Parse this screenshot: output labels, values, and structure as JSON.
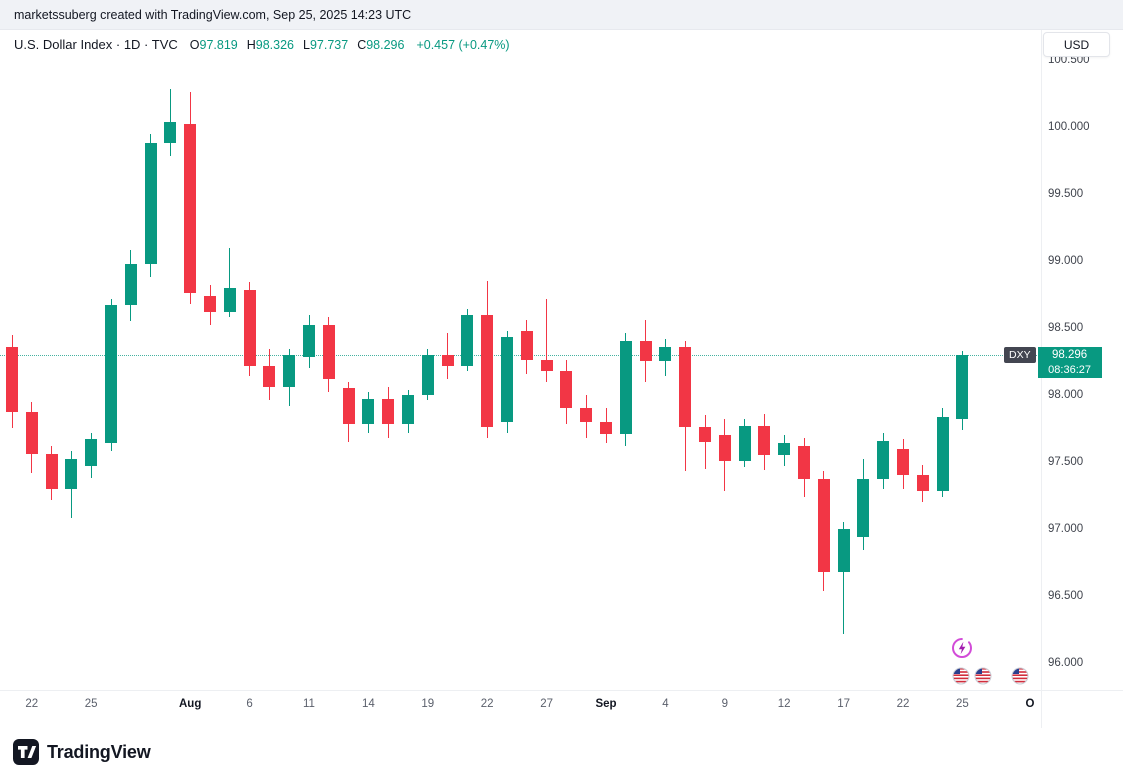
{
  "meta": {
    "attribution": "marketssuberg created with TradingView.com, Sep 25, 2025 14:23 UTC"
  },
  "header": {
    "symbol_title": "U.S. Dollar Index · 1D · TVC",
    "open_label": "O",
    "open_value": "97.819",
    "high_label": "H",
    "high_value": "98.326",
    "low_label": "L",
    "low_value": "97.737",
    "close_label": "C",
    "close_value": "98.296",
    "change_text": "+0.457 (+0.47%)",
    "currency_button": "USD"
  },
  "last_price": {
    "symbol": "DXY",
    "price": "98.296",
    "countdown": "08:36:27"
  },
  "footer": {
    "brand": "TradingView"
  },
  "icons": {
    "flash": "flash-event-icon",
    "us_flag": "us-flag-event-icon",
    "tv_logo": "tradingview-logo-icon"
  },
  "colors": {
    "up": "#089981",
    "down": "#f23645",
    "badge_chip": "#434651",
    "topbar_bg": "#f0f2f6"
  },
  "chart_data": {
    "type": "candlestick",
    "symbol": "DXY",
    "title": "U.S. Dollar Index, 1D, TVC",
    "ylabel": "USD",
    "ylim": [
      96.0,
      100.5
    ],
    "y_ticks": [
      100.5,
      100.0,
      99.5,
      99.0,
      98.5,
      98.0,
      97.5,
      97.0,
      96.5,
      96.0
    ],
    "grid": false,
    "last_price": 98.296,
    "up_color": "#089981",
    "down_color": "#f23645",
    "candles": [
      {
        "t": "Jul 21",
        "o": 98.36,
        "h": 98.45,
        "l": 97.75,
        "c": 97.87
      },
      {
        "t": "Jul 22",
        "o": 97.87,
        "h": 97.95,
        "l": 97.42,
        "c": 97.56
      },
      {
        "t": "Jul 23",
        "o": 97.56,
        "h": 97.62,
        "l": 97.22,
        "c": 97.3
      },
      {
        "t": "Jul 24",
        "o": 97.3,
        "h": 97.58,
        "l": 97.08,
        "c": 97.52
      },
      {
        "t": "Jul 25",
        "o": 97.47,
        "h": 97.72,
        "l": 97.38,
        "c": 97.67
      },
      {
        "t": "Jul 28",
        "o": 97.64,
        "h": 98.72,
        "l": 97.58,
        "c": 98.67
      },
      {
        "t": "Jul 29",
        "o": 98.67,
        "h": 99.08,
        "l": 98.55,
        "c": 98.98
      },
      {
        "t": "Jul 30",
        "o": 98.98,
        "h": 99.95,
        "l": 98.88,
        "c": 99.88
      },
      {
        "t": "Jul 31",
        "o": 99.88,
        "h": 100.28,
        "l": 99.78,
        "c": 100.04
      },
      {
        "t": "Aug 1",
        "o": 100.02,
        "h": 100.26,
        "l": 98.68,
        "c": 98.76
      },
      {
        "t": "Aug 4",
        "o": 98.74,
        "h": 98.82,
        "l": 98.52,
        "c": 98.62
      },
      {
        "t": "Aug 5",
        "o": 98.62,
        "h": 99.1,
        "l": 98.58,
        "c": 98.8
      },
      {
        "t": "Aug 6",
        "o": 98.78,
        "h": 98.84,
        "l": 98.14,
        "c": 98.22
      },
      {
        "t": "Aug 7",
        "o": 98.22,
        "h": 98.34,
        "l": 97.96,
        "c": 98.06
      },
      {
        "t": "Aug 8",
        "o": 98.06,
        "h": 98.34,
        "l": 97.92,
        "c": 98.3
      },
      {
        "t": "Aug 11",
        "o": 98.28,
        "h": 98.6,
        "l": 98.2,
        "c": 98.52
      },
      {
        "t": "Aug 12",
        "o": 98.52,
        "h": 98.58,
        "l": 98.02,
        "c": 98.12
      },
      {
        "t": "Aug 13",
        "o": 98.05,
        "h": 98.1,
        "l": 97.65,
        "c": 97.78
      },
      {
        "t": "Aug 14",
        "o": 97.78,
        "h": 98.02,
        "l": 97.72,
        "c": 97.97
      },
      {
        "t": "Aug 15",
        "o": 97.97,
        "h": 98.06,
        "l": 97.68,
        "c": 97.78
      },
      {
        "t": "Aug 18",
        "o": 97.78,
        "h": 98.04,
        "l": 97.72,
        "c": 98.0
      },
      {
        "t": "Aug 19",
        "o": 98.0,
        "h": 98.34,
        "l": 97.96,
        "c": 98.3
      },
      {
        "t": "Aug 20",
        "o": 98.3,
        "h": 98.46,
        "l": 98.12,
        "c": 98.22
      },
      {
        "t": "Aug 21",
        "o": 98.22,
        "h": 98.64,
        "l": 98.18,
        "c": 98.6
      },
      {
        "t": "Aug 22",
        "o": 98.6,
        "h": 98.85,
        "l": 97.68,
        "c": 97.76
      },
      {
        "t": "Aug 25",
        "o": 97.8,
        "h": 98.48,
        "l": 97.72,
        "c": 98.43
      },
      {
        "t": "Aug 26",
        "o": 98.48,
        "h": 98.56,
        "l": 98.16,
        "c": 98.26
      },
      {
        "t": "Aug 27",
        "o": 98.26,
        "h": 98.72,
        "l": 98.1,
        "c": 98.18
      },
      {
        "t": "Aug 28",
        "o": 98.18,
        "h": 98.26,
        "l": 97.78,
        "c": 97.9
      },
      {
        "t": "Aug 29",
        "o": 97.9,
        "h": 98.0,
        "l": 97.68,
        "c": 97.8
      },
      {
        "t": "Sep 1",
        "o": 97.8,
        "h": 97.9,
        "l": 97.64,
        "c": 97.71
      },
      {
        "t": "Sep 2",
        "o": 97.71,
        "h": 98.46,
        "l": 97.62,
        "c": 98.4
      },
      {
        "t": "Sep 3",
        "o": 98.4,
        "h": 98.56,
        "l": 98.1,
        "c": 98.25
      },
      {
        "t": "Sep 4",
        "o": 98.25,
        "h": 98.42,
        "l": 98.14,
        "c": 98.36
      },
      {
        "t": "Sep 5",
        "o": 98.36,
        "h": 98.4,
        "l": 97.43,
        "c": 97.76
      },
      {
        "t": "Sep 8",
        "o": 97.76,
        "h": 97.85,
        "l": 97.45,
        "c": 97.65
      },
      {
        "t": "Sep 9",
        "o": 97.7,
        "h": 97.82,
        "l": 97.28,
        "c": 97.51
      },
      {
        "t": "Sep 10",
        "o": 97.51,
        "h": 97.82,
        "l": 97.46,
        "c": 97.77
      },
      {
        "t": "Sep 11",
        "o": 97.77,
        "h": 97.86,
        "l": 97.44,
        "c": 97.55
      },
      {
        "t": "Sep 12",
        "o": 97.55,
        "h": 97.7,
        "l": 97.47,
        "c": 97.64
      },
      {
        "t": "Sep 15",
        "o": 97.62,
        "h": 97.68,
        "l": 97.24,
        "c": 97.37
      },
      {
        "t": "Sep 16",
        "o": 97.37,
        "h": 97.43,
        "l": 96.54,
        "c": 96.68
      },
      {
        "t": "Sep 17",
        "o": 96.68,
        "h": 97.05,
        "l": 96.22,
        "c": 97.0
      },
      {
        "t": "Sep 18",
        "o": 96.94,
        "h": 97.52,
        "l": 96.84,
        "c": 97.37
      },
      {
        "t": "Sep 19",
        "o": 97.37,
        "h": 97.72,
        "l": 97.3,
        "c": 97.66
      },
      {
        "t": "Sep 22",
        "o": 97.6,
        "h": 97.67,
        "l": 97.3,
        "c": 97.4
      },
      {
        "t": "Sep 23",
        "o": 97.4,
        "h": 97.48,
        "l": 97.2,
        "c": 97.28
      },
      {
        "t": "Sep 24",
        "o": 97.28,
        "h": 97.9,
        "l": 97.24,
        "c": 97.839
      },
      {
        "t": "Sep 25",
        "o": 97.819,
        "h": 98.326,
        "l": 97.737,
        "c": 98.296
      }
    ],
    "time_ticks": [
      {
        "label": "22",
        "i": 1
      },
      {
        "label": "25",
        "i": 4
      },
      {
        "label": "Aug",
        "i": 9,
        "major": true
      },
      {
        "label": "6",
        "i": 12
      },
      {
        "label": "11",
        "i": 15
      },
      {
        "label": "14",
        "i": 18
      },
      {
        "label": "19",
        "i": 21
      },
      {
        "label": "22",
        "i": 24
      },
      {
        "label": "27",
        "i": 27
      },
      {
        "label": "Sep",
        "i": 30,
        "major": true
      },
      {
        "label": "4",
        "i": 33
      },
      {
        "label": "9",
        "i": 36
      },
      {
        "label": "12",
        "i": 39
      },
      {
        "label": "17",
        "i": 42
      },
      {
        "label": "22",
        "i": 45
      },
      {
        "label": "25",
        "i": 48
      },
      {
        "label": "O",
        "i": 52,
        "major": true
      }
    ]
  }
}
